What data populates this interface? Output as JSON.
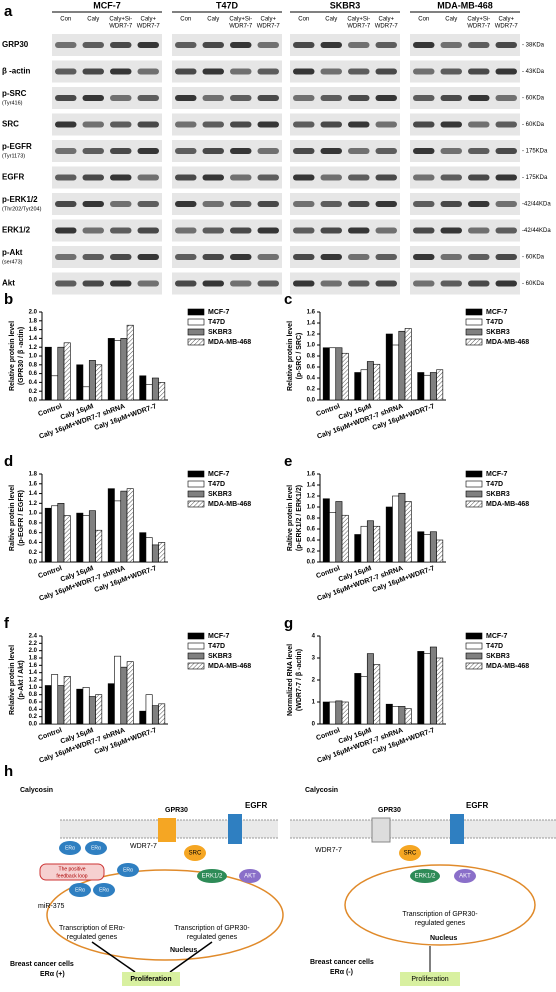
{
  "panel_labels": [
    "a",
    "b",
    "c",
    "d",
    "e",
    "f",
    "g",
    "h"
  ],
  "blots": {
    "cell_lines": [
      "MCF-7",
      "T47D",
      "SKBR3",
      "MDA-MB-468"
    ],
    "lanes": [
      [
        "Con"
      ],
      [
        "Caly"
      ],
      [
        "Caly+Si-",
        "WDR7-7"
      ],
      [
        "Caly+",
        "WDR7-7"
      ]
    ],
    "proteins": [
      [
        "GRP30"
      ],
      [
        "β -actin"
      ],
      [
        "p-SRC",
        "(Tyr416)"
      ],
      [
        "SRC"
      ],
      [
        "p-EGFR",
        "(Tyr1173)"
      ],
      [
        "EGFR"
      ],
      [
        "p-ERK1/2",
        "(Thr202/Tyr204)"
      ],
      [
        "ERK1/2"
      ],
      [
        "p-Akt",
        "(ser473)"
      ],
      [
        "Akt"
      ]
    ],
    "weights": [
      "- 38KDa",
      "- 43KDa",
      "- 60KDa",
      "- 60KDa",
      "- 175KDa",
      "- 175KDa",
      "-42/44KDa",
      "-42/44KDa",
      "- 60KDa",
      "- 60KDa"
    ]
  },
  "chart_data": [
    {
      "type": "bar",
      "ylabel": [
        "Relative protein level",
        "(GPR30 / β -actin)"
      ],
      "categories": [
        "Control",
        "Caly 16μM",
        "Caly 16μM+WDR7-7 shRNA",
        "Caly 16μM+WDR7-7"
      ],
      "series": [
        {
          "name": "MCF-7",
          "color": "#000000",
          "values": [
            1.2,
            0.8,
            1.4,
            0.55
          ]
        },
        {
          "name": "T47D",
          "color": "#ffffff",
          "values": [
            0.55,
            0.3,
            1.35,
            0.35
          ]
        },
        {
          "name": "SKBR3",
          "color": "#808080",
          "values": [
            1.2,
            0.9,
            1.4,
            0.5
          ]
        },
        {
          "name": "MDA-MB-468",
          "color": "#ffffff",
          "hatch": true,
          "values": [
            1.3,
            0.8,
            1.7,
            0.4
          ]
        }
      ],
      "ylim": [
        0,
        2.0
      ],
      "yticks": [
        {
          "value": 0,
          "label": "0.0"
        },
        {
          "value": 0.2,
          "label": "0.2"
        },
        {
          "value": 0.4,
          "label": "0.4"
        },
        {
          "value": 0.6,
          "label": "0.6"
        },
        {
          "value": 0.8,
          "label": "0.8"
        },
        {
          "value": 1.0,
          "label": "1.0"
        },
        {
          "value": 1.2,
          "label": "1.2"
        },
        {
          "value": 1.4,
          "label": "1.4"
        },
        {
          "value": 1.6,
          "label": "1.6"
        },
        {
          "value": 1.8,
          "label": "1.8"
        },
        {
          "value": 2.0,
          "label": "2.0"
        }
      ],
      "legend": "right"
    },
    {
      "type": "bar",
      "ylabel": [
        "Relative protein level",
        "(p-SRC / SRC)"
      ],
      "categories": [
        "Control",
        "Caly 16μM",
        "Caly 16μM+WDR7-7 shRNA",
        "Caly 16μM+WDR7-7"
      ],
      "series": [
        {
          "name": "MCF-7",
          "color": "#000000",
          "values": [
            0.95,
            0.5,
            1.2,
            0.5
          ]
        },
        {
          "name": "T47D",
          "color": "#ffffff",
          "values": [
            0.95,
            0.55,
            1.0,
            0.45
          ]
        },
        {
          "name": "SKBR3",
          "color": "#808080",
          "values": [
            0.95,
            0.7,
            1.25,
            0.5
          ]
        },
        {
          "name": "MDA-MB-468",
          "color": "#ffffff",
          "hatch": true,
          "values": [
            0.85,
            0.65,
            1.3,
            0.55
          ]
        }
      ],
      "ylim": [
        0,
        1.6
      ],
      "yticks": [
        {
          "value": 0,
          "label": "0.0"
        },
        {
          "value": 0.2,
          "label": "0.2"
        },
        {
          "value": 0.4,
          "label": "0.4"
        },
        {
          "value": 0.6,
          "label": "0.6"
        },
        {
          "value": 0.8,
          "label": "0.8"
        },
        {
          "value": 1.0,
          "label": "1.0"
        },
        {
          "value": 1.2,
          "label": "1.2"
        },
        {
          "value": 1.4,
          "label": "1.4"
        },
        {
          "value": 1.6,
          "label": "1.6"
        }
      ],
      "legend": "right"
    },
    {
      "type": "bar",
      "ylabel": [
        "Raltive protein level",
        "(p-EGFR / EGFR)"
      ],
      "categories": [
        "Control",
        "Caly 16μM",
        "Caly 16μM+WDR7-7 shRNA",
        "Caly 16μM+WDR7-7"
      ],
      "series": [
        {
          "name": "MCF-7",
          "color": "#000000",
          "values": [
            1.1,
            1.0,
            1.5,
            0.6
          ]
        },
        {
          "name": "T47D",
          "color": "#ffffff",
          "values": [
            1.15,
            0.95,
            1.25,
            0.5
          ]
        },
        {
          "name": "SKBR3",
          "color": "#808080",
          "values": [
            1.2,
            1.05,
            1.45,
            0.35
          ]
        },
        {
          "name": "MDA-MB-468",
          "color": "#ffffff",
          "hatch": true,
          "values": [
            0.95,
            0.65,
            1.5,
            0.4
          ]
        }
      ],
      "ylim": [
        0,
        1.8
      ],
      "yticks": [
        {
          "value": 0,
          "label": "0.0"
        },
        {
          "value": 0.2,
          "label": "0.2"
        },
        {
          "value": 0.4,
          "label": "0.4"
        },
        {
          "value": 0.6,
          "label": "0.6"
        },
        {
          "value": 0.8,
          "label": "0.8"
        },
        {
          "value": 1.0,
          "label": "1.0"
        },
        {
          "value": 1.2,
          "label": "1.2"
        },
        {
          "value": 1.4,
          "label": "1.4"
        },
        {
          "value": 1.6,
          "label": "1.6"
        },
        {
          "value": 1.8,
          "label": "1.8"
        }
      ],
      "legend": "right"
    },
    {
      "type": "bar",
      "ylabel": [
        "Raltive protein level",
        "(p-ERK1/2 / ERK1/2)"
      ],
      "categories": [
        "Control",
        "Caly 16μM",
        "Caly 16μM+WDR7-7 shRNA",
        "Caly 16μM+WDR7-7"
      ],
      "series": [
        {
          "name": "MCF-7",
          "color": "#000000",
          "values": [
            1.15,
            0.5,
            1.0,
            0.55
          ]
        },
        {
          "name": "T47D",
          "color": "#ffffff",
          "values": [
            0.9,
            0.65,
            1.2,
            0.5
          ]
        },
        {
          "name": "SKBR3",
          "color": "#808080",
          "values": [
            1.1,
            0.75,
            1.25,
            0.55
          ]
        },
        {
          "name": "MDA-MB-468",
          "color": "#ffffff",
          "hatch": true,
          "values": [
            0.85,
            0.65,
            1.1,
            0.4
          ]
        }
      ],
      "ylim": [
        0,
        1.6
      ],
      "yticks": [
        {
          "value": 0,
          "label": "0.0"
        },
        {
          "value": 0.2,
          "label": "0.2"
        },
        {
          "value": 0.4,
          "label": "0.4"
        },
        {
          "value": 0.6,
          "label": "0.6"
        },
        {
          "value": 0.8,
          "label": "0.8"
        },
        {
          "value": 1.0,
          "label": "1.0"
        },
        {
          "value": 1.2,
          "label": "1.2"
        },
        {
          "value": 1.4,
          "label": "1.4"
        },
        {
          "value": 1.6,
          "label": "1.6"
        }
      ],
      "legend": "right"
    },
    {
      "type": "bar",
      "ylabel": [
        "Relative protein level",
        "(p-Akt / Akt)"
      ],
      "categories": [
        "Control",
        "Caly 16μM",
        "Caly 16μM+WDR7-7 shRNA",
        "Caly 16μM+WDR7-7"
      ],
      "series": [
        {
          "name": "MCF-7",
          "color": "#000000",
          "values": [
            1.05,
            0.95,
            1.1,
            0.35
          ]
        },
        {
          "name": "T47D",
          "color": "#ffffff",
          "values": [
            1.35,
            1.0,
            1.85,
            0.8
          ]
        },
        {
          "name": "SKBR3",
          "color": "#808080",
          "values": [
            1.05,
            0.75,
            1.55,
            0.5
          ]
        },
        {
          "name": "MDA-MB-468",
          "color": "#ffffff",
          "hatch": true,
          "values": [
            1.3,
            0.8,
            1.7,
            0.55
          ]
        }
      ],
      "ylim": [
        0,
        2.4
      ],
      "yticks": [
        {
          "value": 0,
          "label": "0.0"
        },
        {
          "value": 0.2,
          "label": "0.2"
        },
        {
          "value": 0.4,
          "label": "0.4"
        },
        {
          "value": 0.6,
          "label": "0.6"
        },
        {
          "value": 0.8,
          "label": "0.8"
        },
        {
          "value": 1.0,
          "label": "1.0"
        },
        {
          "value": 1.2,
          "label": "1.2"
        },
        {
          "value": 1.4,
          "label": "1.4"
        },
        {
          "value": 1.6,
          "label": "1.6"
        },
        {
          "value": 1.8,
          "label": "1.8"
        },
        {
          "value": 2.0,
          "label": "2.0"
        },
        {
          "value": 2.2,
          "label": "2.2"
        },
        {
          "value": 2.4,
          "label": "2.4"
        }
      ],
      "legend": "right"
    },
    {
      "type": "bar",
      "ylabel": [
        "Normalized RNA level",
        "(WDR7-7 / β -actin)"
      ],
      "categories": [
        "Control",
        "Caly 16μM",
        "Caly 16μM+WDR7-7 shRNA",
        "Caly 16μM+WDR7-7"
      ],
      "series": [
        {
          "name": "MCF-7",
          "color": "#000000",
          "values": [
            1.0,
            2.3,
            0.9,
            3.3
          ]
        },
        {
          "name": "T47D",
          "color": "#ffffff",
          "values": [
            1.0,
            2.15,
            0.8,
            3.2
          ]
        },
        {
          "name": "SKBR3",
          "color": "#808080",
          "values": [
            1.05,
            3.2,
            0.8,
            3.5
          ]
        },
        {
          "name": "MDA-MB-468",
          "color": "#ffffff",
          "hatch": true,
          "values": [
            1.0,
            2.7,
            0.7,
            3.0
          ]
        }
      ],
      "ylim": [
        0,
        4
      ],
      "yticks": [
        0,
        1,
        2,
        3,
        4
      ],
      "legend": "right"
    }
  ],
  "diagram": {
    "left": {
      "calycosin": "Calycosin",
      "gpr30": "GPR30",
      "egfr": "EGFR",
      "era": "ERα",
      "mir": "miR-375",
      "loop": [
        "The positive",
        "feedback loop"
      ],
      "wdr": "WDR7-7",
      "src": "SRC",
      "erk": "ERK1/2",
      "akt": "AKT",
      "transcription_er": [
        "Transcription of ERα-",
        "regulated genes"
      ],
      "transcription_gpr": [
        "Transcription of GPR30-",
        "regulated genes"
      ],
      "nucleus": "Nucleus",
      "cells": [
        "Breast cancer cells",
        "ERα (+)"
      ],
      "proliferation": "Proliferation"
    },
    "right": {
      "calycosin": "Calycosin",
      "gpr30": "GPR30",
      "egfr": "EGFR",
      "wdr": "WDR7-7",
      "src": "SRC",
      "erk": "ERK1/2",
      "akt": "AKT",
      "transcription_gpr": [
        "Transcription of GPR30-",
        "regulated genes"
      ],
      "nucleus": "Nucleus",
      "cells": [
        "Breast cancer cells",
        "ERα (-)"
      ],
      "proliferation": "Proliferation"
    }
  }
}
